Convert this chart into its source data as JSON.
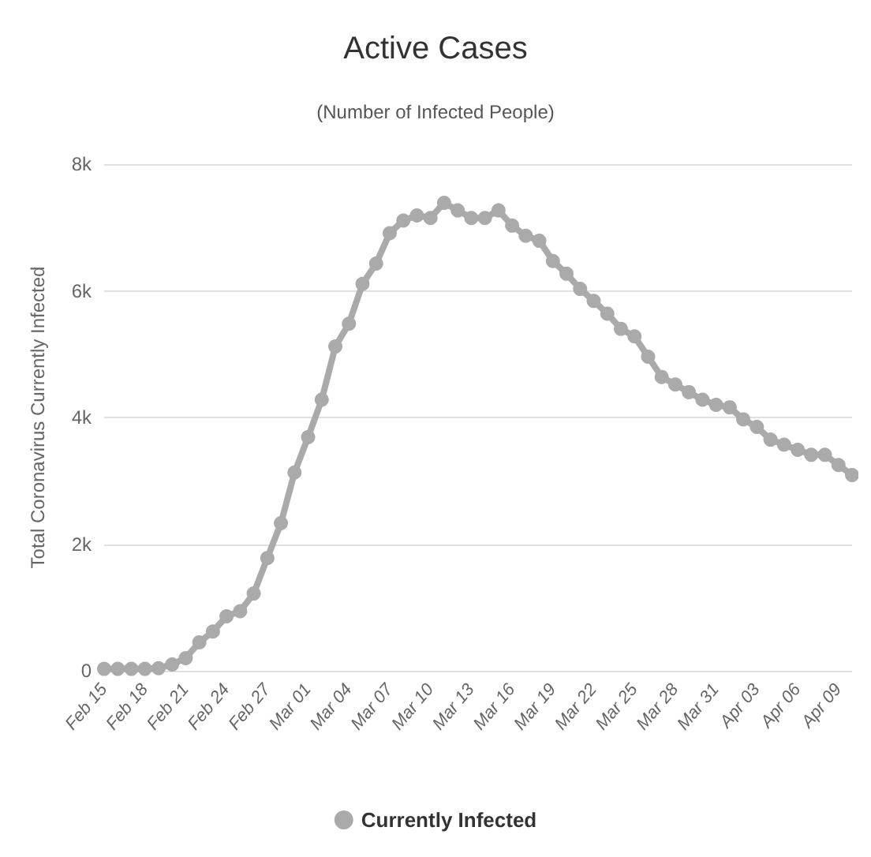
{
  "chart_data": {
    "type": "line",
    "title": "Active Cases",
    "subtitle": "(Number of Infected People)",
    "ylabel": "Total Coronavirus Currently Infected",
    "categories": [
      "Feb 15",
      null,
      null,
      "Feb 18",
      null,
      null,
      "Feb 21",
      null,
      null,
      "Feb 24",
      null,
      null,
      "Feb 27",
      null,
      null,
      "Mar 01",
      null,
      null,
      "Mar 04",
      null,
      null,
      "Mar 07",
      null,
      null,
      "Mar 10",
      null,
      null,
      "Mar 13",
      null,
      null,
      "Mar 16",
      null,
      null,
      "Mar 19",
      null,
      null,
      "Mar 22",
      null,
      null,
      "Mar 25",
      null,
      null,
      "Mar 28",
      null,
      null,
      "Mar 31",
      null,
      null,
      "Apr 03",
      null,
      null,
      "Apr 06",
      null,
      null,
      "Apr 09",
      null
    ],
    "series": [
      {
        "name": "Currently Infected",
        "color": "#aaaaaa",
        "values": [
          30,
          30,
          30,
          30,
          40,
          100,
          200,
          450,
          620,
          860,
          940,
          1220,
          1780,
          2330,
          3130,
          3690,
          4280,
          5120,
          5480,
          6110,
          6430,
          6910,
          7110,
          7190,
          7150,
          7390,
          7270,
          7150,
          7150,
          7270,
          7030,
          6870,
          6790,
          6470,
          6270,
          6030,
          5840,
          5640,
          5400,
          5280,
          4960,
          4640,
          4520,
          4400,
          4280,
          4200,
          4160,
          3970,
          3850,
          3650,
          3570,
          3490,
          3410,
          3410,
          3250,
          3090
        ]
      }
    ],
    "ylim": [
      0,
      8000
    ],
    "yticks": [
      {
        "value": 0,
        "label": "0"
      },
      {
        "value": 2000,
        "label": "2k"
      },
      {
        "value": 4000,
        "label": "4k"
      },
      {
        "value": 6000,
        "label": "6k"
      },
      {
        "value": 8000,
        "label": "8k"
      }
    ],
    "grid": "y",
    "legend": "bottom",
    "marker": "circle",
    "line_style": "solid"
  }
}
